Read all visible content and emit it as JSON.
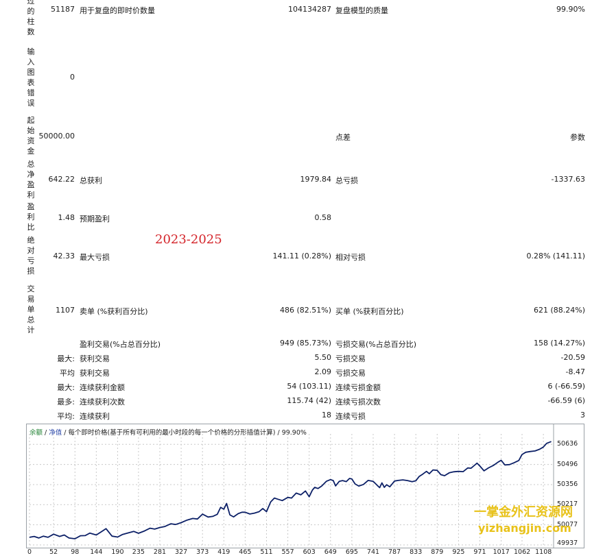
{
  "vertical_labels": [
    "过的柱数",
    "输入图表错误",
    "起始资金",
    "总净盈利",
    "盈利比",
    "绝对亏损",
    "交易单总计"
  ],
  "bars_processed": {
    "value": "51187",
    "ticks_label": "用于复盘的即时价数量",
    "ticks_value": "104134287",
    "quality_label": "复盘模型的质量",
    "quality_value": "99.90%"
  },
  "chart_errors": {
    "value": "0"
  },
  "initial_deposit": {
    "value": "50000.00",
    "spread_label": "点差",
    "params_label": "参数"
  },
  "net_profit": {
    "value": "642.22",
    "gross_profit_label": "总获利",
    "gross_profit_value": "1979.84",
    "gross_loss_label": "总亏损",
    "gross_loss_value": "-1337.63"
  },
  "profit_factor": {
    "value": "1.48",
    "expected_label": "预期盈利",
    "expected_value": "0.58"
  },
  "drawdown": {
    "value": "42.33",
    "max_label": "最大亏损",
    "max_value": "141.11 (0.28%)",
    "rel_label": "相对亏损",
    "rel_value": "0.28% (141.11)"
  },
  "trades": {
    "value": "1107",
    "short_label": "卖单 (%获利百分比)",
    "short_value": "486 (82.51%)",
    "long_label": "买单 (%获利百分比)",
    "long_value": "621 (88.24%)"
  },
  "profit_trades": {
    "label": "盈利交易(%占总百分比)",
    "value": "949 (85.73%)",
    "loss_label": "亏损交易(%占总百分比)",
    "loss_value": "158 (14.27%)"
  },
  "largest": {
    "prefix": "最大:",
    "win_label": "获利交易",
    "win_value": "5.50",
    "loss_label": "亏损交易",
    "loss_value": "-20.59"
  },
  "average": {
    "prefix": "平均",
    "win_label": "获利交易",
    "win_value": "2.09",
    "loss_label": "亏损交易",
    "loss_value": "-8.47"
  },
  "max_consec": {
    "prefix": "最大:",
    "win_label": "连续获利金额",
    "win_value": "54 (103.11)",
    "loss_label": "连续亏损金额",
    "loss_value": "6 (-66.59)"
  },
  "max_consec_count": {
    "prefix": "最多:",
    "win_label": "连续获利次数",
    "win_value": "115.74 (42)",
    "loss_label": "连续亏损次数",
    "loss_value": "-66.59 (6)"
  },
  "avg_consec": {
    "prefix": "平均:",
    "win_label": "连续获利",
    "win_value": "18",
    "loss_label": "连续亏损",
    "loss_value": "3"
  },
  "annotation": "2023-2025",
  "watermark": {
    "line1": "一掌金外汇资源网",
    "line2": "yizhangjin.com"
  },
  "chart_data": {
    "type": "line",
    "legend": {
      "balance": "余额",
      "sep1": " / ",
      "equity": "净值",
      "sep2": " / ",
      "model": "每个即时价格(基于所有可利用的最小时段的每一个价格的分形插值计算)",
      "sep3": " / ",
      "quality": "99.90%"
    },
    "x_ticks": [
      "0",
      "52",
      "98",
      "144",
      "190",
      "235",
      "281",
      "327",
      "373",
      "419",
      "465",
      "511",
      "557",
      "603",
      "649",
      "695",
      "741",
      "787",
      "833",
      "879",
      "925",
      "971",
      "1017",
      "1062",
      "1108"
    ],
    "y_ticks": [
      "50636",
      "50496",
      "50356",
      "50217",
      "50077",
      "49937"
    ],
    "xlim": [
      0,
      1130
    ],
    "ylim": [
      49937,
      50680
    ],
    "line_color": "#0b1f66",
    "series": [
      {
        "x": [
          0,
          10,
          20,
          30,
          40,
          52,
          65,
          75,
          85,
          98,
          110,
          120,
          130,
          144,
          155,
          165,
          178,
          190,
          200,
          212,
          225,
          235,
          248,
          260,
          270,
          281,
          292,
          305,
          315,
          327,
          340,
          352,
          362,
          373,
          385,
          395,
          405,
          412,
          419,
          425,
          432,
          440,
          450,
          458,
          465,
          475,
          485,
          495,
          503,
          511,
          520,
          528,
          535,
          545,
          557,
          565,
          575,
          585,
          595,
          603,
          610,
          615,
          622,
          630,
          640,
          649,
          655,
          660,
          668,
          675,
          683,
          690,
          695,
          702,
          710,
          720,
          730,
          741,
          750,
          755,
          760,
          765,
          770,
          777,
          787,
          795,
          805,
          815,
          825,
          833,
          840,
          848,
          856,
          862,
          870,
          879,
          887,
          895,
          905,
          915,
          925,
          935,
          945,
          952,
          960,
          965,
          971,
          980,
          990,
          1000,
          1010,
          1017,
          1025,
          1035,
          1045,
          1055,
          1062,
          1070,
          1080,
          1090,
          1100,
          1108,
          1115,
          1125
        ],
        "y": [
          49990,
          49996,
          49985,
          49998,
          49990,
          50012,
          49996,
          50006,
          49985,
          49980,
          50001,
          50002,
          50019,
          50006,
          50029,
          50050,
          49998,
          49992,
          50009,
          50020,
          50031,
          50018,
          50034,
          50053,
          50047,
          50058,
          50065,
          50084,
          50079,
          50092,
          50110,
          50121,
          50117,
          50151,
          50131,
          50135,
          50150,
          50198,
          50185,
          50225,
          50146,
          50132,
          50154,
          50164,
          50164,
          50152,
          50158,
          50168,
          50190,
          50168,
          50236,
          50263,
          50255,
          50245,
          50267,
          50263,
          50297,
          50285,
          50312,
          50272,
          50318,
          50337,
          50329,
          50346,
          50379,
          50391,
          50384,
          50347,
          50379,
          50384,
          50377,
          50399,
          50395,
          50361,
          50346,
          50357,
          50385,
          50379,
          50350,
          50335,
          50368,
          50337,
          50355,
          50341,
          50381,
          50385,
          50389,
          50384,
          50376,
          50383,
          50412,
          50429,
          50448,
          50432,
          50458,
          50455,
          50425,
          50418,
          50438,
          50445,
          50448,
          50446,
          50472,
          50470,
          50492,
          50505,
          50485,
          50452,
          50473,
          50489,
          50512,
          50525,
          50493,
          50495,
          50508,
          50524,
          50565,
          50581,
          50586,
          50590,
          50602,
          50617,
          50643,
          50655
        ]
      }
    ]
  }
}
